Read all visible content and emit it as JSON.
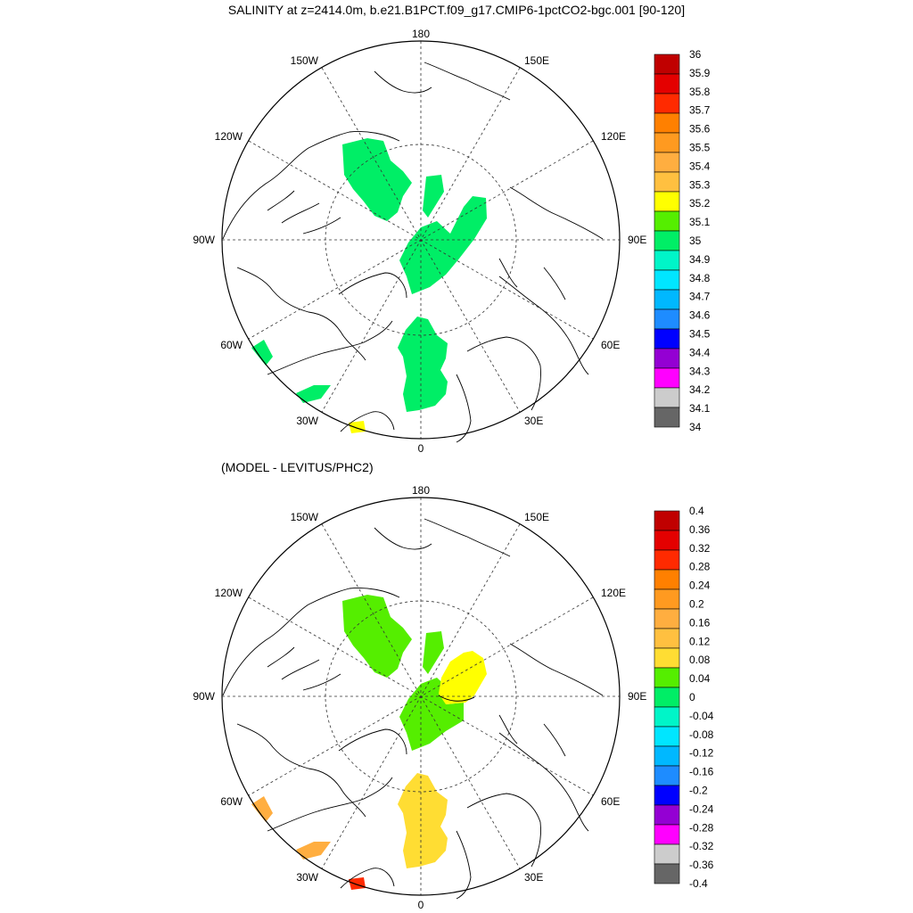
{
  "top_panel": {
    "title": "SALINITY at z=2414.0m, b.e21.B1PCT.f09_g17.CMIP6-1pctCO2-bgc.001 [90-120]",
    "colorbar": {
      "labels": [
        "36",
        "35.9",
        "35.8",
        "35.7",
        "35.6",
        "35.5",
        "35.4",
        "35.3",
        "35.2",
        "35.1",
        "35",
        "34.9",
        "34.8",
        "34.7",
        "34.6",
        "34.5",
        "34.4",
        "34.3",
        "34.2",
        "34.1",
        "34"
      ],
      "colors": [
        "#c00000",
        "#e40000",
        "#ff2a00",
        "#ff8000",
        "#ff9a20",
        "#ffae40",
        "#ffc040",
        "#ffff00",
        "#55ee00",
        "#00ee66",
        "#00f5c8",
        "#00e6ff",
        "#00b8ff",
        "#1e8cff",
        "#0000ff",
        "#9400d3",
        "#ff00ff",
        "#cccccc",
        "#666666"
      ]
    }
  },
  "bottom_panel": {
    "title": "(MODEL - LEVITUS/PHC2)",
    "colorbar": {
      "labels": [
        "0.4",
        "0.36",
        "0.32",
        "0.28",
        "0.24",
        "0.2",
        "0.16",
        "0.12",
        "0.08",
        "0.04",
        "0",
        "-0.04",
        "-0.08",
        "-0.12",
        "-0.16",
        "-0.2",
        "-0.24",
        "-0.28",
        "-0.32",
        "-0.36",
        "-0.4"
      ],
      "colors": [
        "#c00000",
        "#e40000",
        "#ff2a00",
        "#ff8000",
        "#ff9a20",
        "#ffae40",
        "#ffc040",
        "#ffdd33",
        "#55ee00",
        "#00ee66",
        "#00f5c8",
        "#00e6ff",
        "#00b8ff",
        "#1e8cff",
        "#0000ff",
        "#9400d3",
        "#ff00ff",
        "#cccccc",
        "#666666"
      ]
    }
  },
  "map_labels": {
    "top": "180",
    "bottom": "0",
    "left": "90W",
    "right": "90E",
    "upper_left": "150W",
    "upper_right": "150E",
    "mid_upper_left": "120W",
    "mid_upper_right": "120E",
    "mid_lower_left": "60W",
    "mid_lower_right": "60E",
    "lower_left": "30W",
    "lower_right": "30E"
  },
  "colors": {
    "green_salinity": "#00ee66",
    "green_diff": "#55ee00",
    "yellow_diff": "#ffff00",
    "gold_diff": "#ffdd33",
    "orange_diff": "#ffae40"
  }
}
